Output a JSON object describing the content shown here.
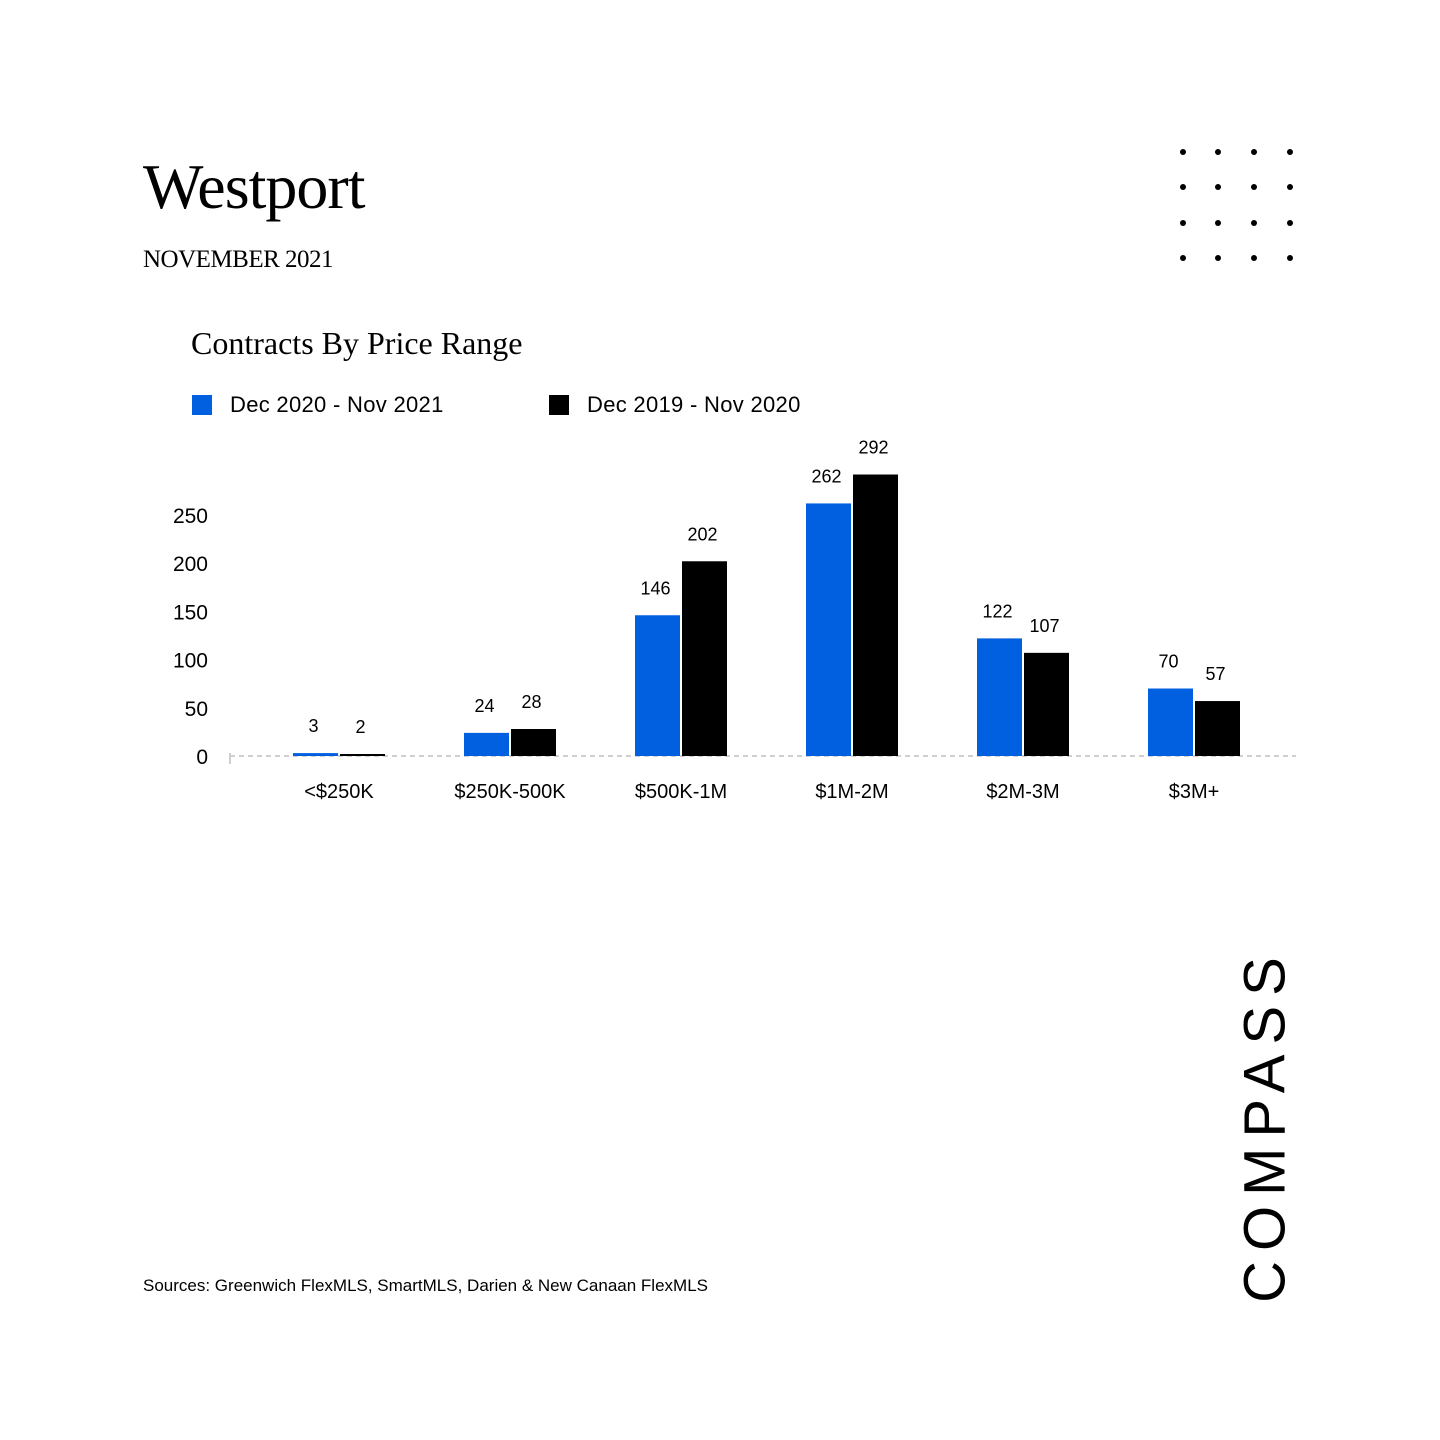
{
  "header": {
    "title": "Westport",
    "subtitle": "NOVEMBER 2021"
  },
  "chart_data": {
    "type": "bar",
    "title": "Contracts By Price Range",
    "categories": [
      "<$250K",
      "$250K-500K",
      "$500K-1M",
      "$1M-2M",
      "$2M-3M",
      "$3M+"
    ],
    "series": [
      {
        "name": "Dec 2020 - Nov 2021",
        "color": "#0060E0",
        "values": [
          3,
          24,
          146,
          262,
          122,
          70
        ]
      },
      {
        "name": "Dec 2019 - Nov 2020",
        "color": "#000000",
        "values": [
          2,
          28,
          202,
          292,
          107,
          57
        ]
      }
    ],
    "yticks": [
      0,
      50,
      100,
      150,
      200,
      250
    ],
    "ylim": [
      0,
      300
    ],
    "legend": "top-left",
    "grid": false,
    "xlabel": "",
    "ylabel": ""
  },
  "footer": {
    "source": "Sources: Greenwich FlexMLS, SmartMLS, Darien & New Canaan FlexMLS",
    "brand": "COMPASS"
  }
}
